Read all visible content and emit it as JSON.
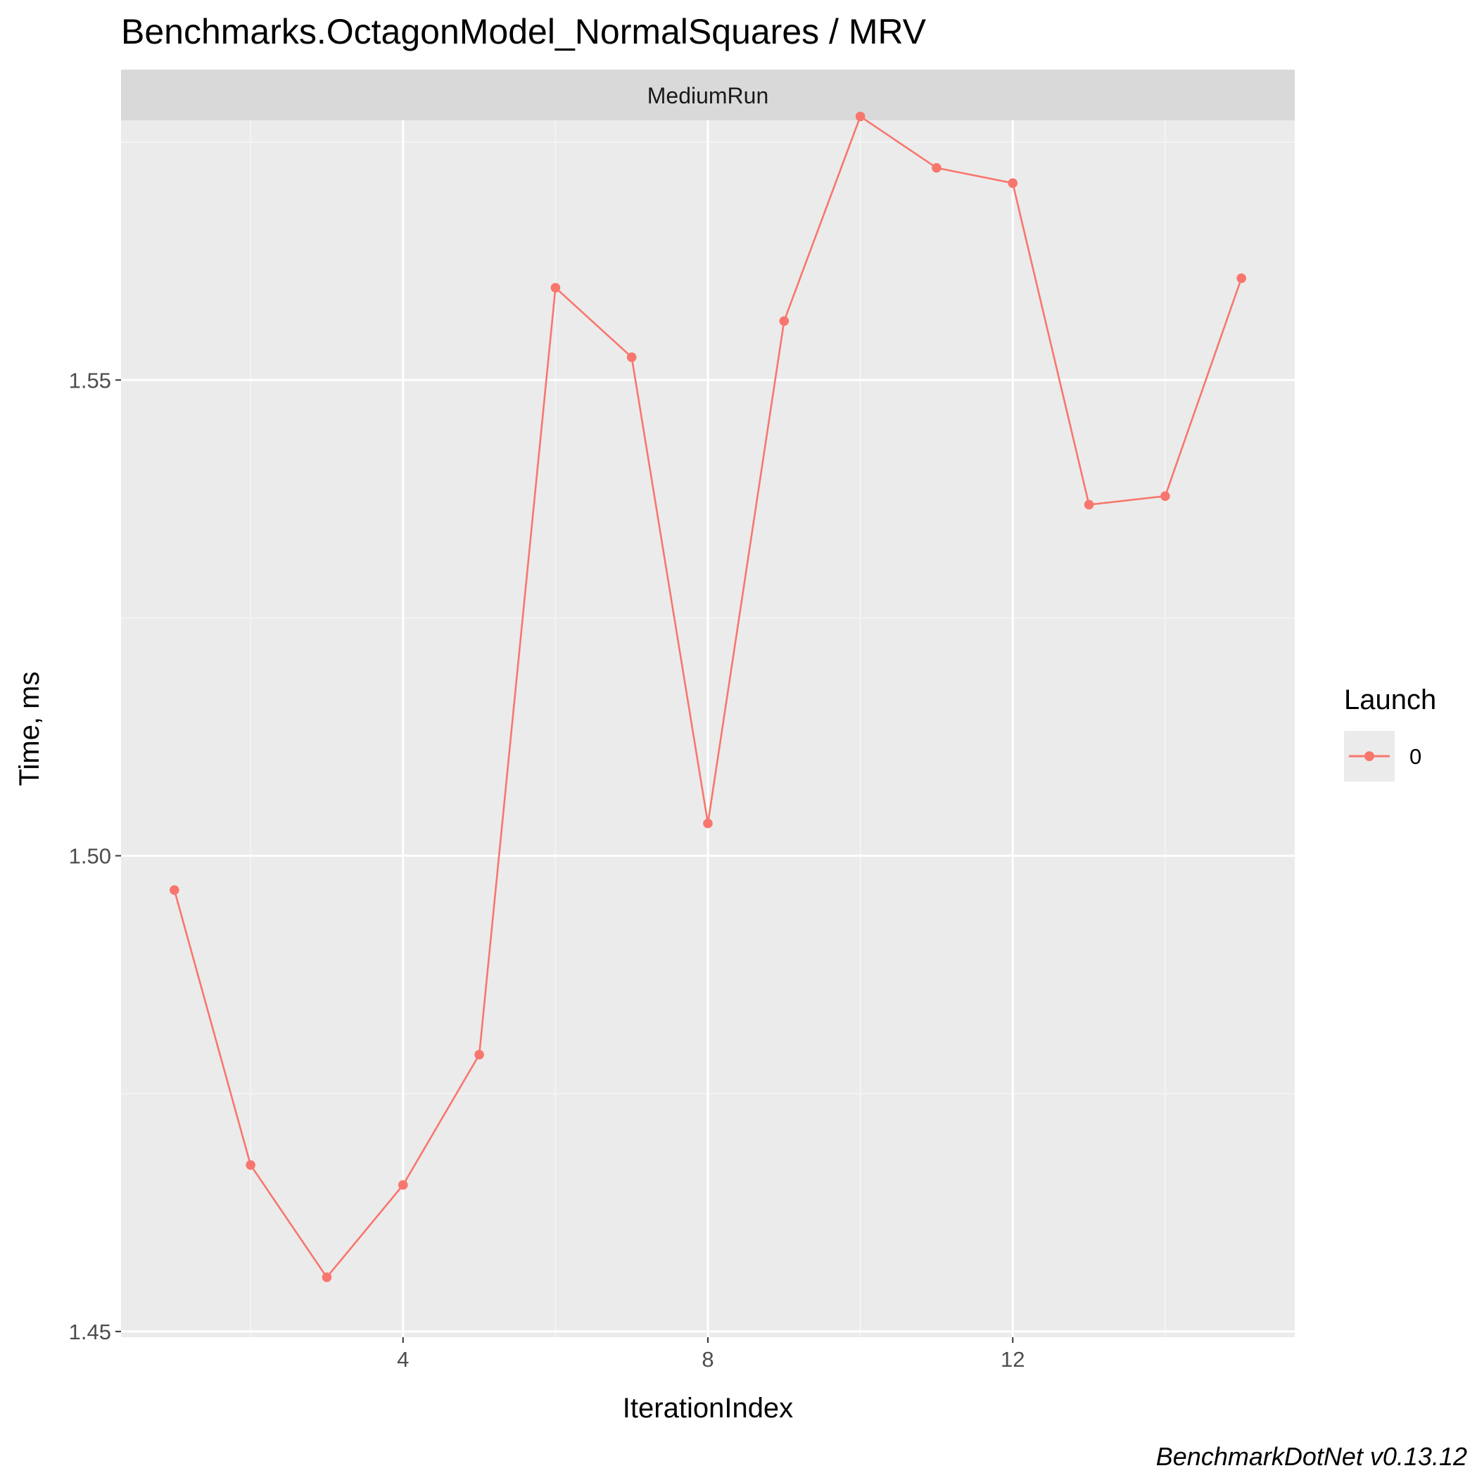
{
  "colors": {
    "panel_background": "#EBEBEB",
    "grid_major": "#FFFFFF",
    "grid_minor": "#F5F5F5",
    "strip_background": "#D9D9D9",
    "series": "#F8766D",
    "tick_text": "#4D4D4D",
    "tick_mark": "#333333"
  },
  "chart_data": {
    "type": "line",
    "title": "Benchmarks.OctagonModel_NormalSquares / MRV",
    "facet": "MediumRun",
    "xlabel": "IterationIndex",
    "ylabel": "Time, ms",
    "xlim": [
      0.3,
      15.7
    ],
    "ylim": [
      1.4494,
      1.5773
    ],
    "x_ticks": [
      4,
      8,
      12
    ],
    "x_tick_labels": [
      "4",
      "8",
      "12"
    ],
    "x_minor_ticks": [
      2,
      6,
      10,
      14
    ],
    "y_ticks": [
      1.45,
      1.5,
      1.55
    ],
    "y_tick_labels": [
      "1.45",
      "1.50",
      "1.55"
    ],
    "y_minor_ticks": [
      1.475,
      1.525,
      1.575
    ],
    "grid": true,
    "legend": {
      "title": "Launch",
      "position": "right",
      "entries": [
        "0"
      ]
    },
    "series": [
      {
        "name": "0",
        "x": [
          1,
          2,
          3,
          4,
          5,
          6,
          7,
          8,
          9,
          10,
          11,
          12,
          13,
          14,
          15
        ],
        "values": [
          1.4964,
          1.4675,
          1.4557,
          1.4654,
          1.4791,
          1.5597,
          1.5524,
          1.5034,
          1.5562,
          1.5777,
          1.5723,
          1.5707,
          1.5369,
          1.5378,
          1.5607
        ]
      }
    ],
    "caption": "BenchmarkDotNet v0.13.12"
  }
}
